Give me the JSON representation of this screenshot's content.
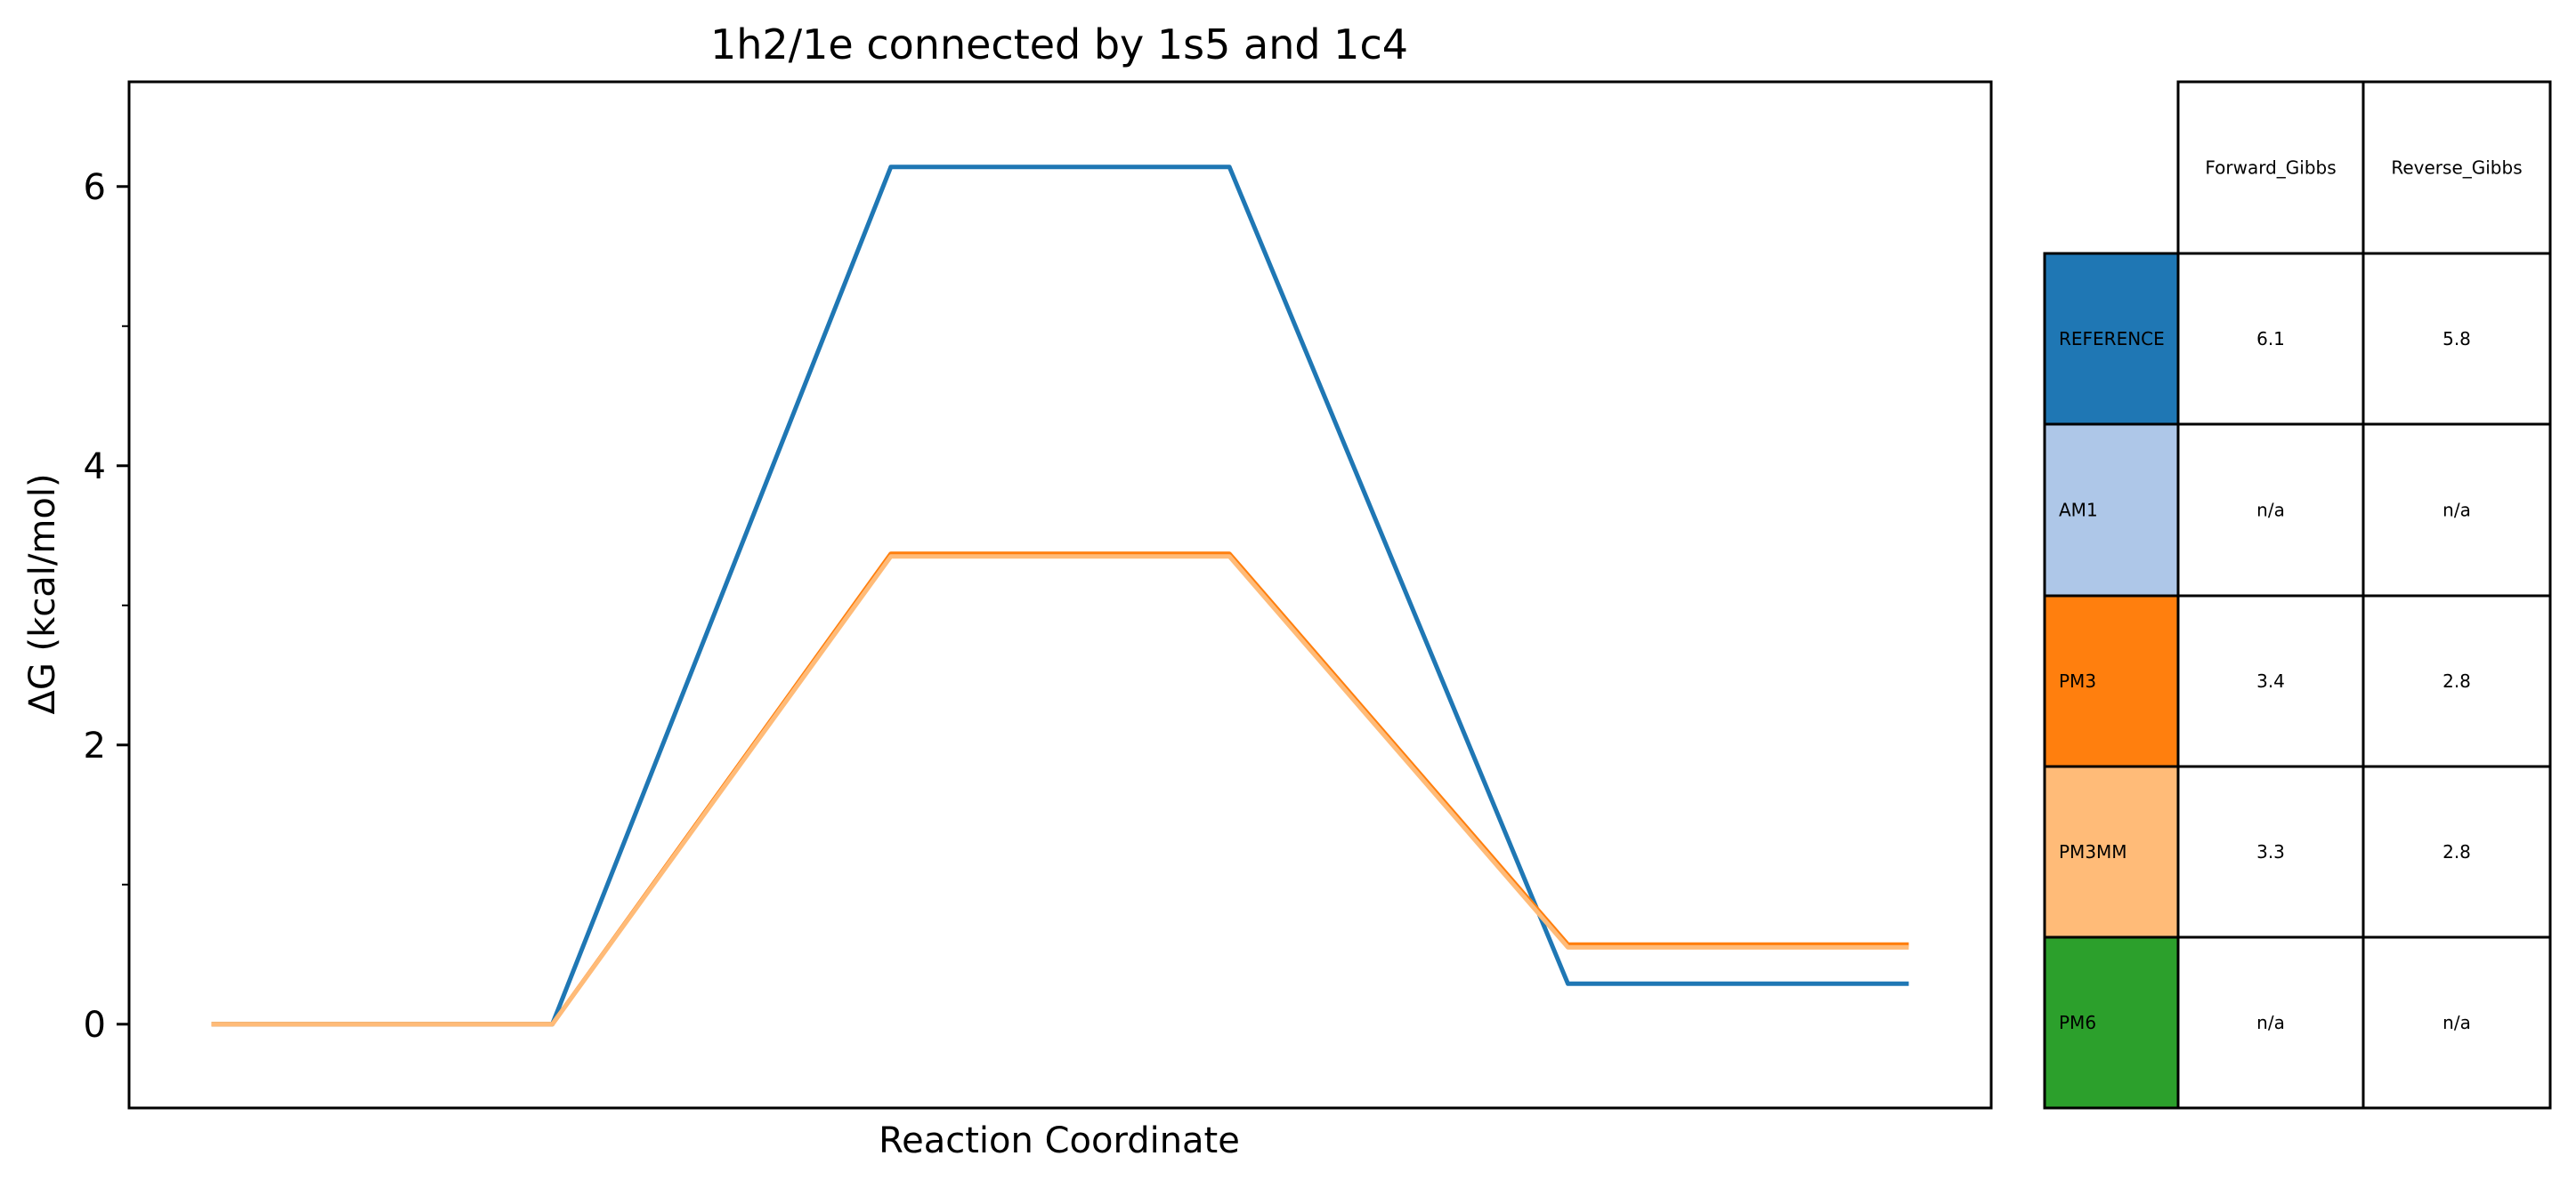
{
  "chart_data": {
    "type": "line",
    "title": "1h2/1e connected by 1s5 and 1c4",
    "xlabel": "Reaction Coordinate",
    "ylabel": "ΔG (kcal/mol)",
    "xlim": [
      -0.25,
      5.25
    ],
    "ylim": [
      -0.6,
      6.75
    ],
    "x": [
      0,
      1,
      2,
      3,
      4,
      5
    ],
    "y_ticks": [
      0,
      2,
      4,
      6
    ],
    "y_tick_labels": [
      "0",
      "2",
      "4",
      "6"
    ],
    "y_minor_ticks": [
      1,
      3,
      5
    ],
    "grid": false,
    "x_ticks_visible": false,
    "series": [
      {
        "name": "REFERENCE",
        "color": "#1f77b4",
        "values": [
          0,
          0,
          6.14,
          6.14,
          0.29,
          0.29
        ]
      },
      {
        "name": "PM3",
        "color": "#ff7f0e",
        "values": [
          0,
          0,
          3.37,
          3.37,
          0.57,
          0.57
        ]
      },
      {
        "name": "PM3MM",
        "color": "#ffbb78",
        "values": [
          0,
          0,
          3.35,
          3.35,
          0.55,
          0.55
        ]
      }
    ],
    "table": {
      "columns": [
        "Forward_Gibbs",
        "Reverse_Gibbs"
      ],
      "rows": [
        {
          "label": "REFERENCE",
          "color": "#1f77b4",
          "values": [
            "6.1",
            "5.8"
          ]
        },
        {
          "label": "AM1",
          "color": "#aec7e8",
          "values": [
            "n/a",
            "n/a"
          ]
        },
        {
          "label": "PM3",
          "color": "#ff7f0e",
          "values": [
            "3.4",
            "2.8"
          ]
        },
        {
          "label": "PM3MM",
          "color": "#ffbb78",
          "values": [
            "3.3",
            "2.8"
          ]
        },
        {
          "label": "PM6",
          "color": "#2ca02c",
          "values": [
            "n/a",
            "n/a"
          ]
        }
      ]
    }
  }
}
